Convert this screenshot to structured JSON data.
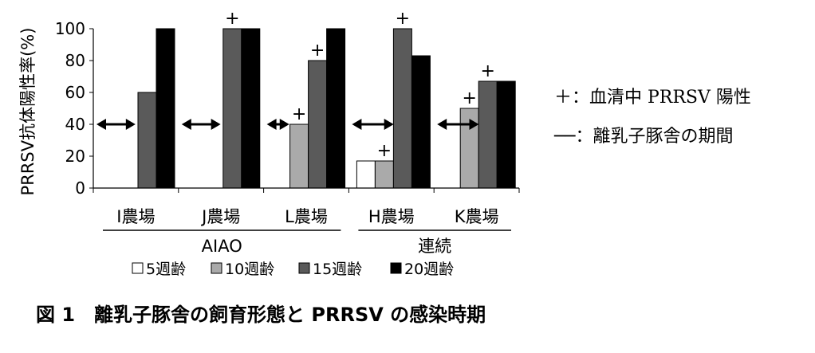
{
  "chart_data": {
    "type": "bar",
    "ylabel": "PRRSV抗体陽性率(%)",
    "ylim": [
      0,
      100
    ],
    "yticks": [
      0,
      20,
      40,
      60,
      80,
      100
    ],
    "categories": [
      "I農場",
      "J農場",
      "L農場",
      "H農場",
      "K農場"
    ],
    "series": [
      {
        "name": "5週齢",
        "color": "#ffffff",
        "values": [
          null,
          null,
          null,
          17,
          null
        ]
      },
      {
        "name": "10週齢",
        "color": "#aaaaaa",
        "values": [
          null,
          null,
          40,
          17,
          50
        ]
      },
      {
        "name": "15週齢",
        "color": "#5a5a5a",
        "values": [
          60,
          100,
          80,
          100,
          67
        ]
      },
      {
        "name": "20週齢",
        "color": "#000000",
        "values": [
          100,
          100,
          100,
          83,
          67
        ]
      }
    ],
    "positive_markers": [
      {
        "category": 1,
        "series": 2
      },
      {
        "category": 2,
        "series": 1
      },
      {
        "category": 2,
        "series": 2
      },
      {
        "category": 3,
        "series": 1
      },
      {
        "category": 3,
        "series": 2
      },
      {
        "category": 4,
        "series": 1
      },
      {
        "category": 4,
        "series": 2
      }
    ],
    "marker_symbol": "+",
    "weaning_periods": [
      {
        "category": 0,
        "from": 0,
        "to": 1.95
      },
      {
        "category": 1,
        "from": 0,
        "to": 1.95
      },
      {
        "category": 2,
        "from": 0,
        "to": 1.05
      },
      {
        "category": 3,
        "from": 0,
        "to": 2.1
      },
      {
        "category": 4,
        "from": 0,
        "to": 2.1
      }
    ],
    "weaning_level": 40,
    "groups": [
      {
        "label": "AIAO",
        "categories": [
          0,
          1,
          2
        ]
      },
      {
        "label": "連続",
        "categories": [
          3,
          4
        ]
      }
    ],
    "notes": {
      "plus": "＋：血清中 PRRSV 陽性",
      "line": "──：離乳子豚舎の期間"
    }
  },
  "caption": "図 1　離乳子豚舎の飼育形態と PRRSV の感染時期"
}
